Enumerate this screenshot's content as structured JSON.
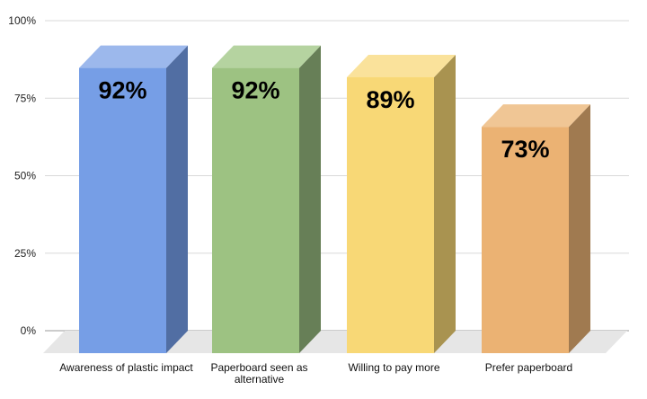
{
  "chart_data": {
    "type": "bar",
    "style": "3d-column",
    "categories": [
      "Awareness of plastic impact",
      "Paperboard seen as alternative",
      "Willing to pay more",
      "Prefer paperboard"
    ],
    "category_label_lines": [
      [
        "Awareness of plastic impact"
      ],
      [
        "Paperboard seen as",
        "alternative"
      ],
      [
        "Willing to pay more"
      ],
      [
        "Prefer paperboard"
      ]
    ],
    "values": [
      92,
      92,
      89,
      73
    ],
    "data_labels": [
      "92%",
      "92%",
      "89%",
      "73%"
    ],
    "colors": [
      "#769EE6",
      "#9DC282",
      "#F8D876",
      "#EBB273"
    ],
    "side_colors": [
      "#516EA3",
      "#677F57",
      "#A99350",
      "#A07A50"
    ],
    "top_colors": [
      "#9CB8EC",
      "#B5D3A0",
      "#FAE29B",
      "#F0C695"
    ],
    "ylim": [
      0,
      100
    ],
    "yticks": [
      0,
      25,
      50,
      75,
      100
    ],
    "ytick_labels": [
      "0%",
      "25%",
      "50%",
      "75%",
      "100%"
    ],
    "title": "",
    "xlabel": "",
    "ylabel": "",
    "grid": true,
    "legend": "none"
  }
}
